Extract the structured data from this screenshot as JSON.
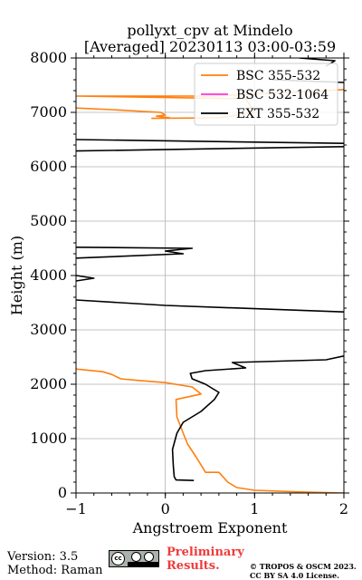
{
  "chart_data": {
    "type": "line",
    "title": [
      "pollyxt_cpv at Mindelo",
      "[Averaged] 20230113 03:00-03:59"
    ],
    "xlabel": "Angstroem Exponent",
    "ylabel": "Height (m)",
    "xlim": [
      -1,
      2
    ],
    "ylim": [
      0,
      8000
    ],
    "xticks": [
      -1,
      0,
      1,
      2
    ],
    "yticks": [
      0,
      1000,
      2000,
      3000,
      4000,
      5000,
      6000,
      7000,
      8000
    ],
    "grid": true,
    "legend_position": "top-right",
    "series": [
      {
        "name": "BSC 355-532",
        "color": "#ff7f0e",
        "points": [
          [
            2.0,
            0
          ],
          [
            1.5,
            20
          ],
          [
            1.0,
            50
          ],
          [
            0.8,
            100
          ],
          [
            0.7,
            200
          ],
          [
            0.6,
            380
          ],
          [
            0.45,
            380
          ],
          [
            0.35,
            650
          ],
          [
            0.25,
            900
          ],
          [
            0.2,
            1100
          ],
          [
            0.13,
            1400
          ],
          [
            0.12,
            1720
          ],
          [
            0.4,
            1820
          ],
          [
            0.3,
            1950
          ],
          [
            0.0,
            2030
          ],
          [
            -0.3,
            2070
          ],
          [
            -0.5,
            2100
          ],
          [
            -0.6,
            2180
          ],
          [
            -0.7,
            2230
          ],
          [
            -1.0,
            2280
          ]
        ],
        "upper_points": [
          [
            -1.0,
            7080
          ],
          [
            -0.6,
            7050
          ],
          [
            -0.05,
            7000
          ],
          [
            0.0,
            6950
          ],
          [
            -0.1,
            6930
          ],
          [
            0.05,
            6900
          ],
          [
            -0.15,
            6890
          ],
          [
            0.6,
            6900
          ],
          [
            1.0,
            7000
          ],
          [
            0.9,
            7250
          ],
          [
            -1.0,
            7300
          ],
          [
            0.5,
            7300
          ],
          [
            1.8,
            7400
          ],
          [
            2.0,
            7420
          ]
        ]
      },
      {
        "name": "BSC 532-1064",
        "color": "#ff33dd",
        "points": []
      },
      {
        "name": "EXT 355-532",
        "color": "#000000",
        "points": [
          [
            0.32,
            230
          ],
          [
            0.12,
            240
          ],
          [
            0.1,
            300
          ],
          [
            0.09,
            500
          ],
          [
            0.08,
            800
          ],
          [
            0.13,
            1100
          ],
          [
            0.2,
            1300
          ],
          [
            0.4,
            1500
          ],
          [
            0.55,
            1720
          ],
          [
            0.6,
            1850
          ],
          [
            0.5,
            1950
          ],
          [
            0.45,
            2000
          ],
          [
            0.3,
            2100
          ],
          [
            0.28,
            2200
          ],
          [
            0.45,
            2250
          ],
          [
            0.9,
            2300
          ],
          [
            0.75,
            2400
          ],
          [
            1.8,
            2450
          ],
          [
            2.0,
            2520
          ]
        ],
        "upper_segments": [
          [
            [
              -1.0,
              3550
            ],
            [
              0.0,
              3450
            ],
            [
              2.0,
              3330
            ]
          ],
          [
            [
              -1.0,
              3900
            ],
            [
              -0.8,
              3950
            ],
            [
              -1.0,
              4000
            ]
          ],
          [
            [
              -1.0,
              4320
            ],
            [
              0.2,
              4400
            ],
            [
              0.0,
              4450
            ],
            [
              0.3,
              4500
            ],
            [
              -1.0,
              4520
            ]
          ],
          [
            [
              -1.0,
              6290
            ],
            [
              2.0,
              6370
            ]
          ],
          [
            [
              -1.0,
              6500
            ],
            [
              2.0,
              6430
            ]
          ],
          [
            [
              1.2,
              7600
            ],
            [
              2.0,
              7550
            ]
          ],
          [
            [
              1.5,
              8000
            ],
            [
              1.9,
              7950
            ],
            [
              1.8,
              7850
            ]
          ]
        ]
      }
    ]
  },
  "footer": {
    "version": "Version: 3.5",
    "method": "Method: Raman",
    "preliminary_line1": "Preliminary",
    "preliminary_line2": "Results.",
    "copyright_line1": "© TROPOS & OSCM 2023.",
    "copyright_line2": "CC BY SA 4.0 License.",
    "license_badge": "cc"
  }
}
